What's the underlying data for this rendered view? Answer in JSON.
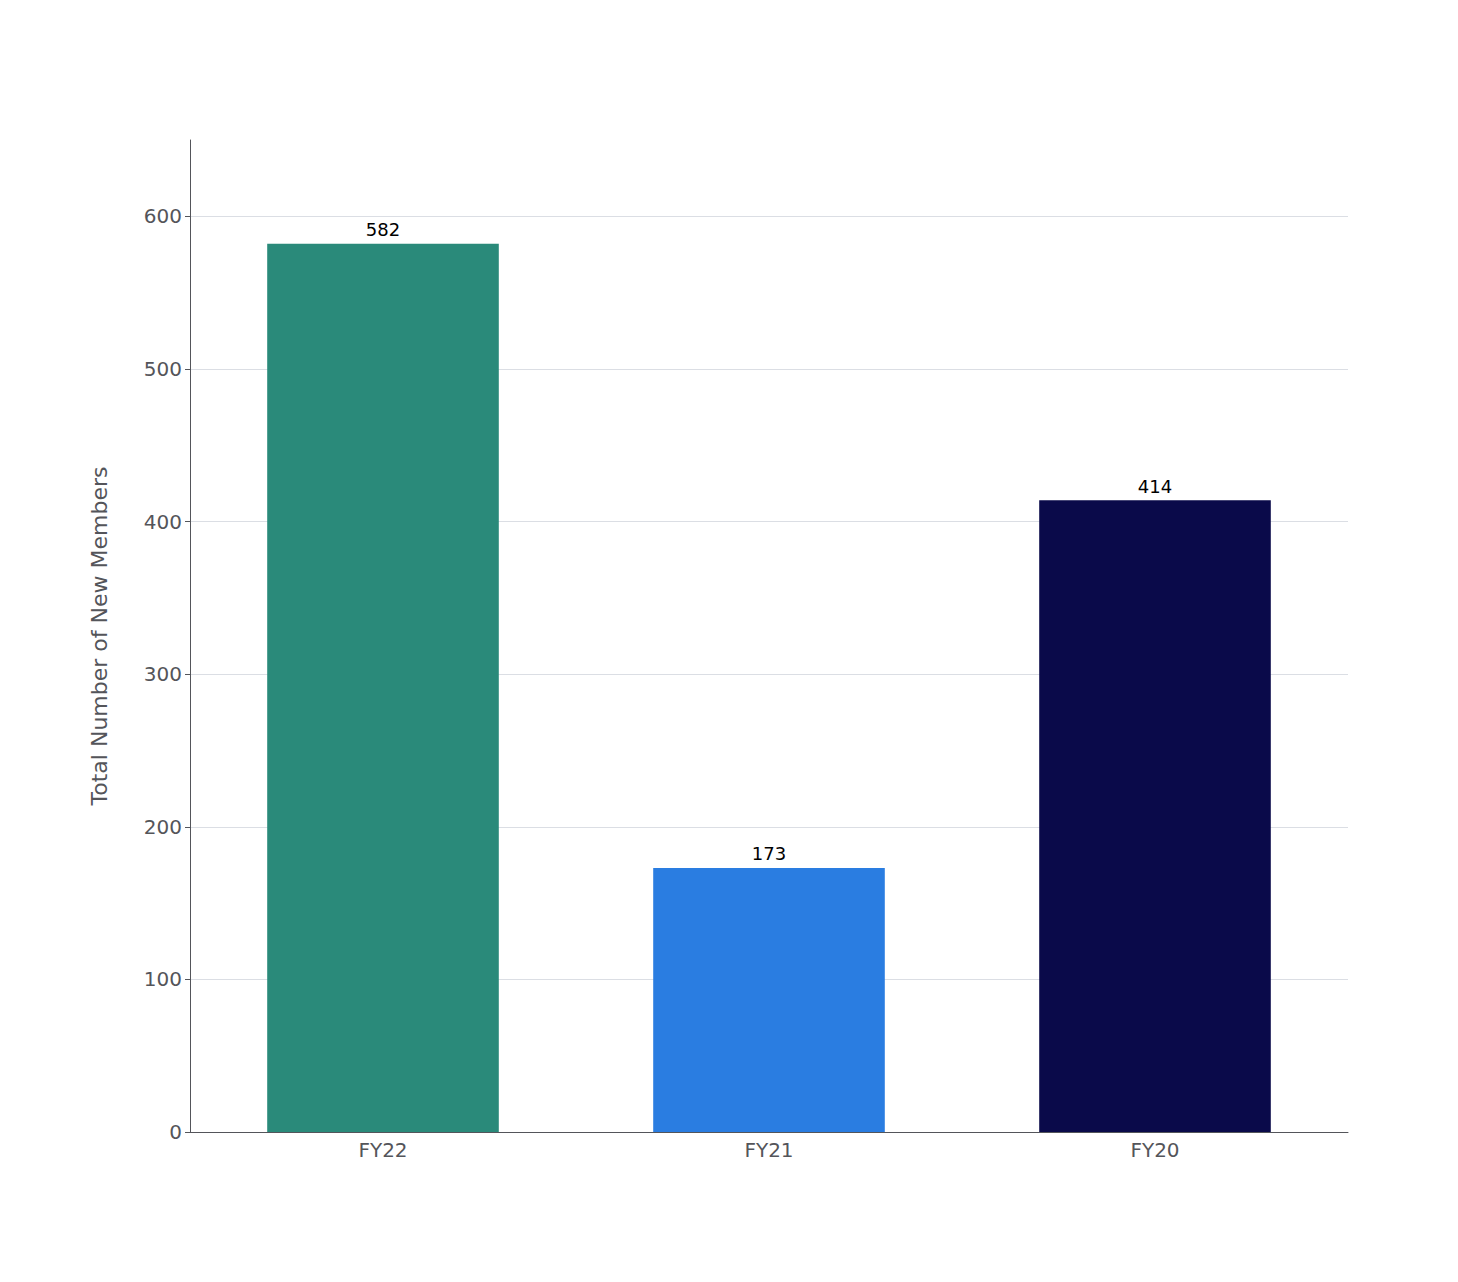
{
  "chart_data": {
    "type": "bar",
    "categories": [
      "FY22",
      "FY21",
      "FY20"
    ],
    "values": [
      582,
      173,
      414
    ],
    "colors": [
      "#2a8a7a",
      "#2a7de1",
      "#0a0a4a"
    ],
    "ylabel": "Total Number of New Members",
    "ylim": [
      0,
      650
    ],
    "yticks": [
      0,
      100,
      200,
      300,
      400,
      500,
      600
    ],
    "grid": true,
    "data_labels": true
  }
}
